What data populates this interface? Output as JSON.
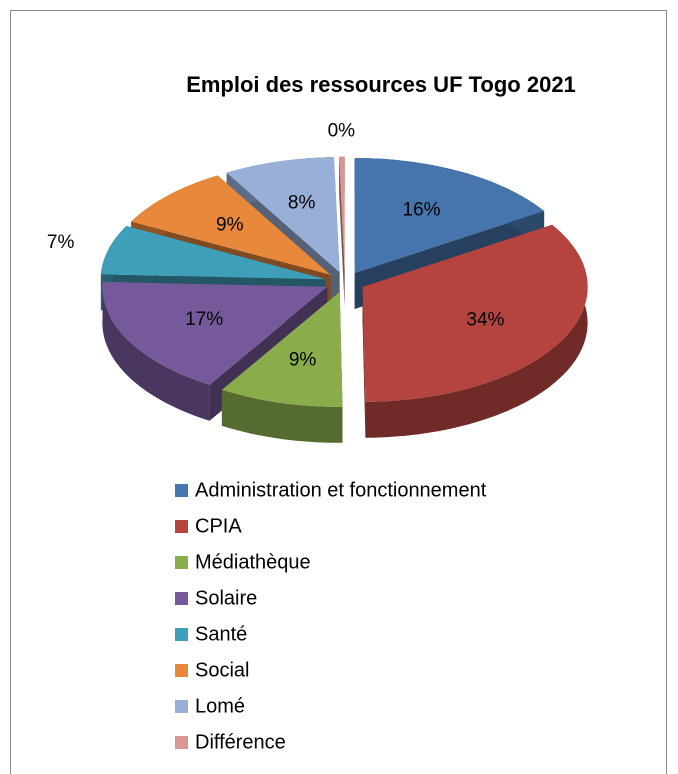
{
  "chart_data": {
    "type": "pie",
    "title": "Emploi des ressources UF Togo 2021",
    "categories": [
      "Administration et fonctionnement",
      "CPIA",
      "Médiathèque",
      "Solaire",
      "Santé",
      "Social",
      "Lomé",
      "Différence"
    ],
    "values": [
      16,
      34,
      9,
      17,
      7,
      9,
      8,
      0.4
    ],
    "value_labels": [
      "16%",
      "34%",
      "9%",
      "17%",
      "7%",
      "9%",
      "8%",
      "0%"
    ],
    "colors": [
      "#4675ad",
      "#b5443f",
      "#8aad4c",
      "#76599a",
      "#3f9eb8",
      "#e8883a",
      "#98b0d8",
      "#d99694"
    ],
    "legend": "bottom"
  }
}
